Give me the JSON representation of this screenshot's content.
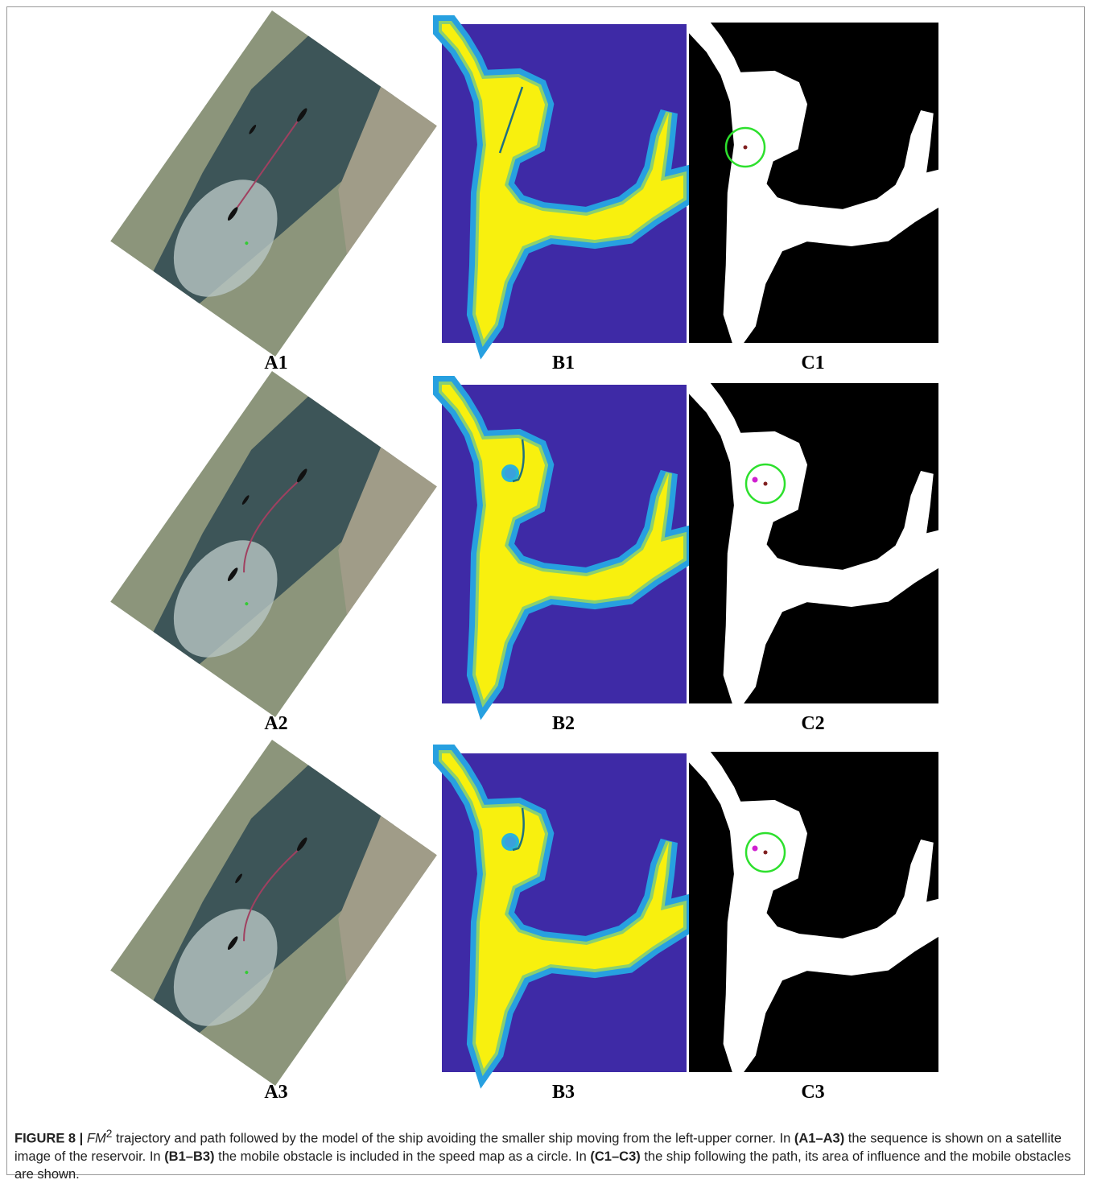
{
  "rows": [
    [
      "A1",
      "B1",
      "C1"
    ],
    [
      "A2",
      "B2",
      "C2"
    ],
    [
      "A3",
      "B3",
      "C3"
    ]
  ],
  "caption": {
    "parts": [
      "FIGURE 8 |",
      "FM",
      "2",
      " trajectory and path followed by the model of the ship avoiding the smaller ship moving from the left-upper corner. In ",
      "(A1–A3)",
      " the sequence is shown on a satellite image of the reservoir. In ",
      "(B1–B3)",
      " the mobile obstacle is included in the speed map as a circle. In ",
      "(C1–C3)",
      " the ship following the path, its area of influence and the mobile obstacles are shown."
    ]
  }
}
